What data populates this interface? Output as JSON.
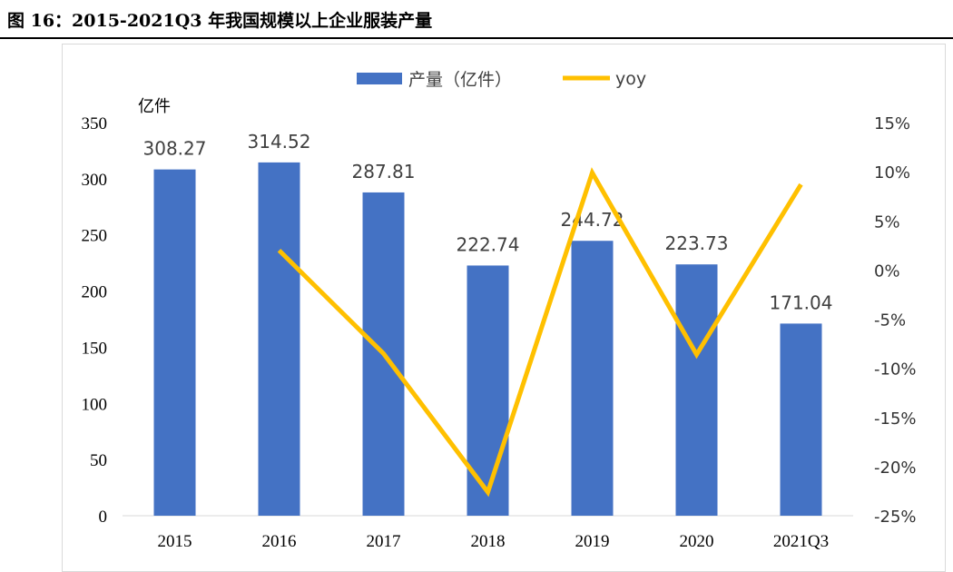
{
  "title": "图 16：2015-2021Q3 年我国规模以上企业服装产量",
  "chart_data": {
    "type": "bar+line",
    "categories": [
      "2015",
      "2016",
      "2017",
      "2018",
      "2019",
      "2020",
      "2021Q3"
    ],
    "series": [
      {
        "name": "产量（亿件）",
        "type": "bar",
        "axis": "left",
        "color": "#4472c4",
        "values": [
          308.27,
          314.52,
          287.81,
          222.74,
          244.72,
          223.73,
          171.04
        ],
        "labels": [
          "308.27",
          "314.52",
          "287.81",
          "222.74",
          "244.72",
          "223.73",
          "171.04"
        ]
      },
      {
        "name": "yoy",
        "type": "line",
        "axis": "right",
        "color": "#ffc000",
        "values": [
          null,
          2.0,
          -8.5,
          -22.6,
          9.9,
          -8.6,
          8.7
        ]
      }
    ],
    "yunit_left": "亿件",
    "ylim_left": [
      0,
      350
    ],
    "yticks_left": [
      "0",
      "50",
      "100",
      "150",
      "200",
      "250",
      "300",
      "350"
    ],
    "ylim_right": [
      -25,
      15
    ],
    "yticks_right": [
      "-25%",
      "-20%",
      "-15%",
      "-10%",
      "-5%",
      "0%",
      "5%",
      "10%",
      "15%"
    ],
    "legend": "top",
    "grid": false
  }
}
